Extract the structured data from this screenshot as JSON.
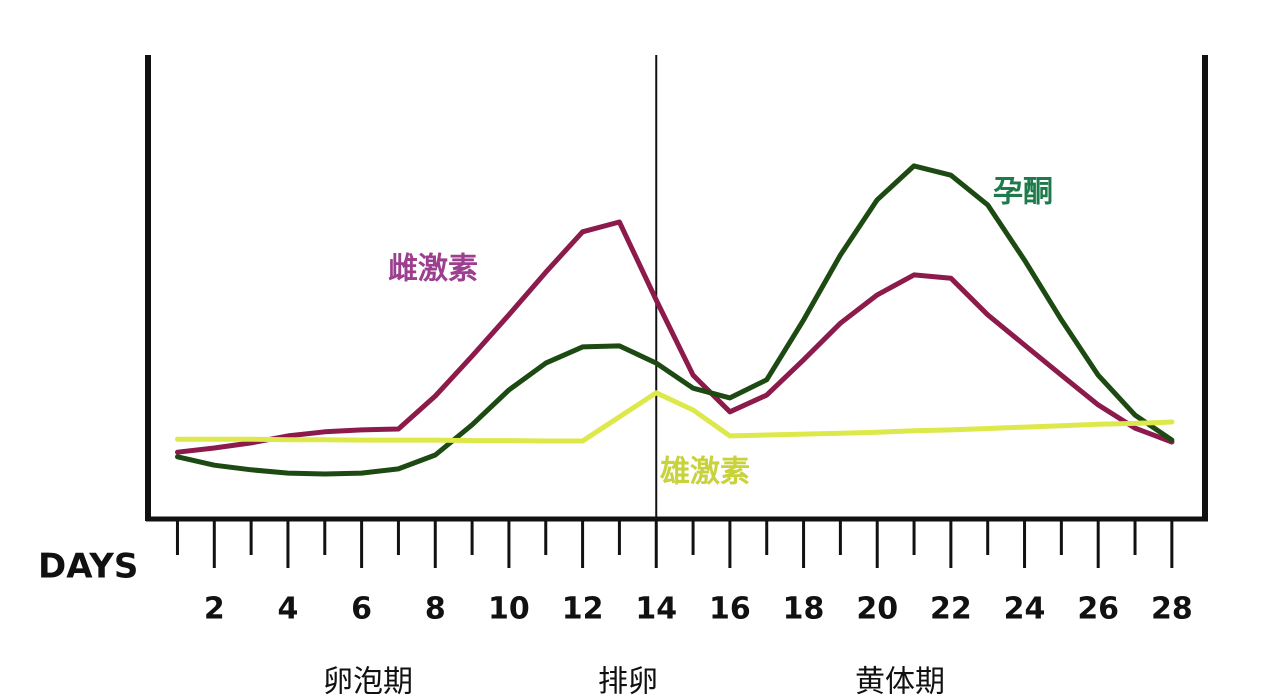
{
  "chart_data": {
    "type": "line",
    "x": [
      1,
      2,
      3,
      4,
      5,
      6,
      7,
      8,
      9,
      10,
      11,
      12,
      13,
      14,
      15,
      16,
      17,
      18,
      19,
      20,
      21,
      22,
      23,
      24,
      25,
      26,
      27,
      28
    ],
    "series": [
      {
        "name": "雌激素",
        "color": "#8c1a4a",
        "label_color": "#9b3f8e",
        "values": [
          14.4,
          15.3,
          16.4,
          17.9,
          18.8,
          19.2,
          19.4,
          26.5,
          35.1,
          44.0,
          53.2,
          61.9,
          64.0,
          47.2,
          31.0,
          23.1,
          26.7,
          34.3,
          42.2,
          48.3,
          52.6,
          51.9,
          44.0,
          37.5,
          31.0,
          24.6,
          19.6,
          16.6
        ]
      },
      {
        "name": "孕酮",
        "color": "#1c4a12",
        "label_color": "#1e7a4a",
        "values": [
          13.4,
          11.6,
          10.6,
          9.9,
          9.7,
          9.9,
          10.8,
          13.8,
          20.3,
          27.8,
          33.6,
          37.1,
          37.3,
          33.6,
          28.2,
          26.1,
          30.0,
          42.9,
          56.9,
          68.8,
          76.1,
          74.1,
          67.7,
          55.8,
          42.9,
          31.0,
          22.4,
          17.0
        ]
      },
      {
        "name": "雄激素",
        "color": "#dde84a",
        "label_color": "#c8d23a",
        "values": [
          17.2,
          17.2,
          17.2,
          17.1,
          17.1,
          17.0,
          17.0,
          17.0,
          16.9,
          16.9,
          16.8,
          16.8,
          22.0,
          27.2,
          23.5,
          17.9,
          18.1,
          18.3,
          18.5,
          18.7,
          19.0,
          19.2,
          19.5,
          19.8,
          20.1,
          20.4,
          20.6,
          20.9
        ]
      }
    ],
    "x_label": "DAYS",
    "xlim": [
      0.2,
      28.9
    ],
    "xticks": [
      2,
      4,
      6,
      8,
      10,
      12,
      14,
      16,
      18,
      20,
      22,
      24,
      26,
      28
    ],
    "xminorticks": [
      1,
      3,
      5,
      7,
      9,
      11,
      13,
      15,
      17,
      19,
      21,
      23,
      25,
      27
    ],
    "ylim": [
      0,
      100
    ],
    "ovulation_day": 14,
    "annotations": [
      "卵泡期",
      "排卵",
      "黄体期"
    ]
  }
}
